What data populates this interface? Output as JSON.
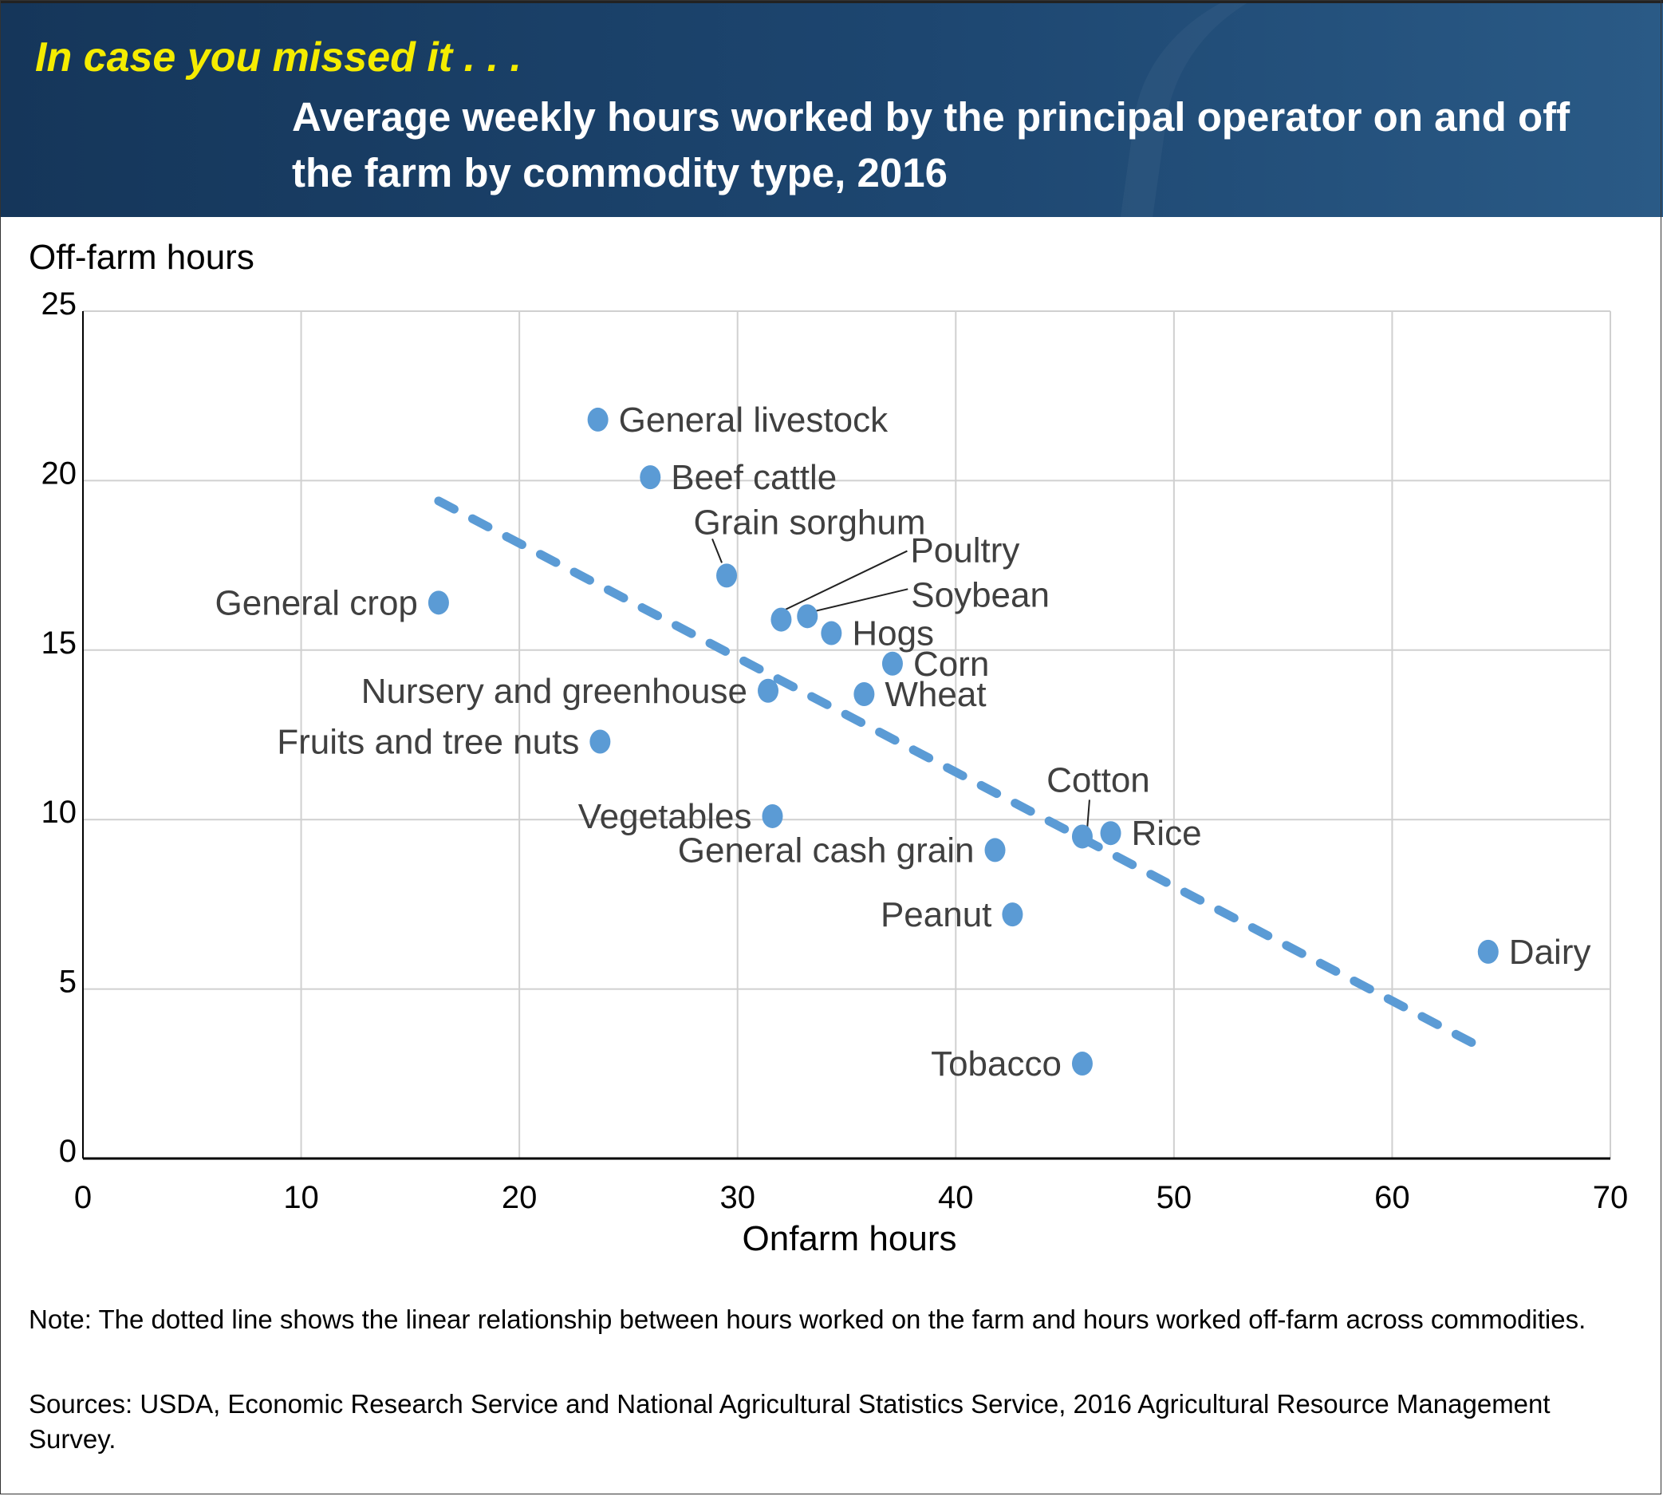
{
  "header": {
    "kicker": "In case you missed it . . .",
    "title": "Average weekly hours worked by the principal operator on and off the farm by commodity type, 2016"
  },
  "footer": {
    "note": "Note: The dotted line shows the linear relationship between hours worked on the farm and hours worked off-farm across commodities.",
    "sources": "Sources: USDA, Economic Research Service and National Agricultural Statistics Service, 2016 Agricultural Resource Management Survey."
  },
  "colors": {
    "point": "#5b9bd5",
    "trend": "#5b9bd5",
    "grid": "#d0d0d0",
    "label": "#404040",
    "kicker": "#f5ec00"
  },
  "chart_data": {
    "type": "scatter",
    "title": "Average weekly hours worked by the principal operator on and off the farm by commodity type, 2016",
    "xlabel": "Onfarm hours",
    "ylabel": "Off-farm hours",
    "xlim": [
      0,
      70
    ],
    "ylim": [
      0,
      25
    ],
    "xticks": [
      "0",
      "10",
      "20",
      "30",
      "40",
      "50",
      "60",
      "70"
    ],
    "yticks": [
      "0",
      "5",
      "10",
      "15",
      "20",
      "25"
    ],
    "grid": true,
    "points": [
      {
        "name": "General livestock",
        "x": 23.6,
        "y": 21.8,
        "label_pos": "right"
      },
      {
        "name": "Beef cattle",
        "x": 26.0,
        "y": 20.1,
        "label_pos": "right"
      },
      {
        "name": "Grain sorghum",
        "x": 29.5,
        "y": 17.2,
        "label_pos": "above-leader"
      },
      {
        "name": "General crop",
        "x": 16.3,
        "y": 16.4,
        "label_pos": "left"
      },
      {
        "name": "Poultry",
        "x": 32.0,
        "y": 15.9,
        "label_pos": "leader-upper"
      },
      {
        "name": "Soybean",
        "x": 33.2,
        "y": 16.0,
        "label_pos": "leader-lower"
      },
      {
        "name": "Hogs",
        "x": 34.3,
        "y": 15.5,
        "label_pos": "right"
      },
      {
        "name": "Corn",
        "x": 37.1,
        "y": 14.6,
        "label_pos": "right"
      },
      {
        "name": "Nursery and greenhouse",
        "x": 31.4,
        "y": 13.8,
        "label_pos": "left"
      },
      {
        "name": "Wheat",
        "x": 35.8,
        "y": 13.7,
        "label_pos": "right"
      },
      {
        "name": "Fruits and tree nuts",
        "x": 23.7,
        "y": 12.3,
        "label_pos": "left"
      },
      {
        "name": "Vegetables",
        "x": 31.6,
        "y": 10.1,
        "label_pos": "left"
      },
      {
        "name": "Cotton",
        "x": 45.8,
        "y": 9.5,
        "label_pos": "above-leader"
      },
      {
        "name": "Rice",
        "x": 47.1,
        "y": 9.6,
        "label_pos": "right"
      },
      {
        "name": "General cash grain",
        "x": 41.8,
        "y": 9.1,
        "label_pos": "left"
      },
      {
        "name": "Peanut",
        "x": 42.6,
        "y": 7.2,
        "label_pos": "left"
      },
      {
        "name": "Dairy",
        "x": 64.4,
        "y": 6.1,
        "label_pos": "right"
      },
      {
        "name": "Tobacco",
        "x": 45.8,
        "y": 2.8,
        "label_pos": "left"
      }
    ],
    "trendline": {
      "style": "dashed",
      "x": [
        16.3,
        64.3
      ],
      "y": [
        19.4,
        3.2
      ]
    }
  }
}
